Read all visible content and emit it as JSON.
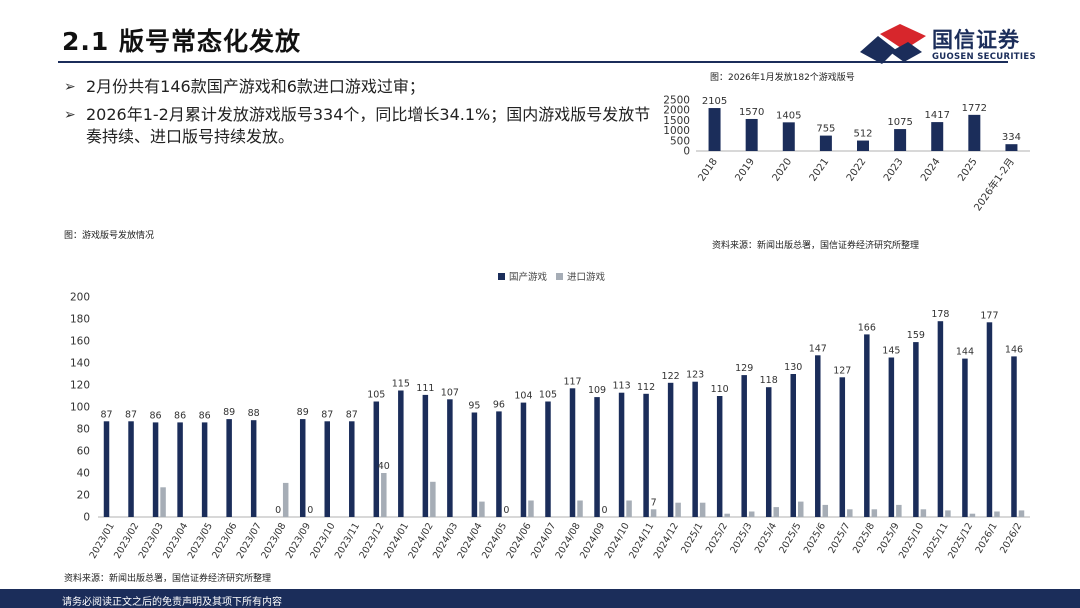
{
  "header": {
    "title": "2.1  版号常态化发放",
    "brand_name": "国信证券",
    "brand_en": "GUOSEN SECURITIES"
  },
  "bullets": [
    "2月份共有146款国产游戏和6款进口游戏过审；",
    "2026年1-2月累计发放游戏版号334个，同比增长34.1%；国内游戏版号发放节奏持续、进口版号持续发放。"
  ],
  "bullet_marker": "➢",
  "captions": {
    "small_chart": "图：2026年1月发放182个游戏版号",
    "big_chart": "图：游戏版号发放情况",
    "source_top": "资料来源：新闻出版总署，国信证券经济研究所整理",
    "source_bottom": "资料来源：新闻出版总署，国信证券经济研究所整理"
  },
  "footer": {
    "disclaimer": "请务必阅读正文之后的免责声明及其项下所有内容"
  },
  "colors": {
    "navy": "#1b2d5a",
    "gray": "#a6adb6",
    "logo_red": "#d7262c"
  },
  "chart_data": [
    {
      "type": "bar",
      "categories": [
        "2018",
        "2019",
        "2020",
        "2021",
        "2022",
        "2023",
        "2024",
        "2025",
        "2026年1-2月"
      ],
      "values": [
        2105,
        1570,
        1405,
        755,
        512,
        1075,
        1417,
        1772,
        334
      ],
      "yticks": [
        0,
        500,
        1000,
        1500,
        2000,
        2500
      ],
      "ylim": [
        0,
        2500
      ],
      "grid": false,
      "data_labels": true
    },
    {
      "type": "bar",
      "categories": [
        "2023/01",
        "2023/02",
        "2023/03",
        "2023/04",
        "2023/05",
        "2023/06",
        "2023/07",
        "2023/08",
        "2023/09",
        "2023/10",
        "2023/11",
        "2023/12",
        "2024/01",
        "2024/02",
        "2024/03",
        "2024/04",
        "2024/05",
        "2024/06",
        "2024/07",
        "2024/08",
        "2024/09",
        "2024/10",
        "2024/11",
        "2024/12",
        "2025/1",
        "2025/2",
        "2025/3",
        "2025/4",
        "2025/5",
        "2025/6",
        "2025/7",
        "2025/8",
        "2025/9",
        "2025/10",
        "2025/11",
        "2025/12",
        "2026/1",
        "2026/2"
      ],
      "series": [
        {
          "name": "国产游戏",
          "values": [
            87,
            87,
            86,
            86,
            86,
            89,
            88,
            0,
            89,
            87,
            87,
            105,
            115,
            111,
            107,
            95,
            96,
            104,
            105,
            117,
            109,
            113,
            112,
            122,
            123,
            110,
            129,
            118,
            130,
            147,
            127,
            166,
            145,
            159,
            178,
            144,
            177,
            146
          ],
          "labels": [
            "87",
            "87",
            "86",
            "86",
            "86",
            "89",
            "88",
            "0",
            "89",
            "87",
            "87",
            "105",
            "115",
            "111",
            "107",
            "95",
            "96",
            "104",
            "105",
            "117",
            "109",
            "113",
            "112",
            "122",
            "123",
            "110",
            "129",
            "118",
            "130",
            "147",
            "127",
            "166",
            "145",
            "159",
            "178",
            "144",
            "177",
            "146"
          ]
        },
        {
          "name": "进口游戏",
          "values": [
            0,
            0,
            27,
            0,
            0,
            0,
            0,
            31,
            0,
            0,
            0,
            40,
            0,
            32,
            0,
            14,
            0,
            15,
            0,
            15,
            0,
            15,
            7,
            13,
            13,
            3,
            5,
            9,
            14,
            11,
            7,
            7,
            11,
            7,
            6,
            3,
            5,
            6
          ],
          "labels": [
            "",
            "",
            "",
            "",
            "",
            "",
            "",
            "",
            "0",
            "",
            "",
            "40",
            "",
            "",
            "",
            "",
            "0",
            "",
            "",
            "",
            "0",
            "",
            "7",
            "",
            "",
            "",
            "",
            "",
            "",
            "",
            "",
            "",
            "",
            "",
            "",
            "",
            "",
            ""
          ]
        }
      ],
      "yticks": [
        0,
        20,
        40,
        60,
        80,
        100,
        120,
        140,
        160,
        180,
        200
      ],
      "ylim": [
        0,
        200
      ],
      "legend": "top-center",
      "grid": false
    }
  ]
}
